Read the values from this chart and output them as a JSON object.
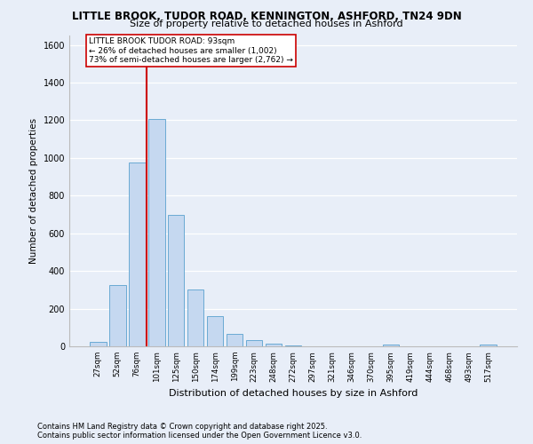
{
  "title1": "LITTLE BROOK, TUDOR ROAD, KENNINGTON, ASHFORD, TN24 9DN",
  "title2": "Size of property relative to detached houses in Ashford",
  "xlabel": "Distribution of detached houses by size in Ashford",
  "ylabel": "Number of detached properties",
  "footnote1": "Contains HM Land Registry data © Crown copyright and database right 2025.",
  "footnote2": "Contains public sector information licensed under the Open Government Licence v3.0.",
  "categories": [
    "27sqm",
    "52sqm",
    "76sqm",
    "101sqm",
    "125sqm",
    "150sqm",
    "174sqm",
    "199sqm",
    "223sqm",
    "248sqm",
    "272sqm",
    "297sqm",
    "321sqm",
    "346sqm",
    "370sqm",
    "395sqm",
    "419sqm",
    "444sqm",
    "468sqm",
    "493sqm",
    "517sqm"
  ],
  "values": [
    25,
    325,
    975,
    1205,
    700,
    300,
    160,
    68,
    32,
    15,
    6,
    0,
    0,
    0,
    0,
    8,
    0,
    0,
    0,
    0,
    8
  ],
  "bar_color": "#c5d8f0",
  "bar_edge_color": "#6aaad4",
  "vline_color": "#cc0000",
  "vline_x": 2.5,
  "ylim": [
    0,
    1650
  ],
  "yticks": [
    0,
    200,
    400,
    600,
    800,
    1000,
    1200,
    1400,
    1600
  ],
  "annotation_text": "LITTLE BROOK TUDOR ROAD: 93sqm\n← 26% of detached houses are smaller (1,002)\n73% of semi-detached houses are larger (2,762) →",
  "annotation_box_color": "#ffffff",
  "annotation_box_edge": "#cc0000",
  "background_color": "#e8eef8",
  "grid_color": "#ffffff"
}
